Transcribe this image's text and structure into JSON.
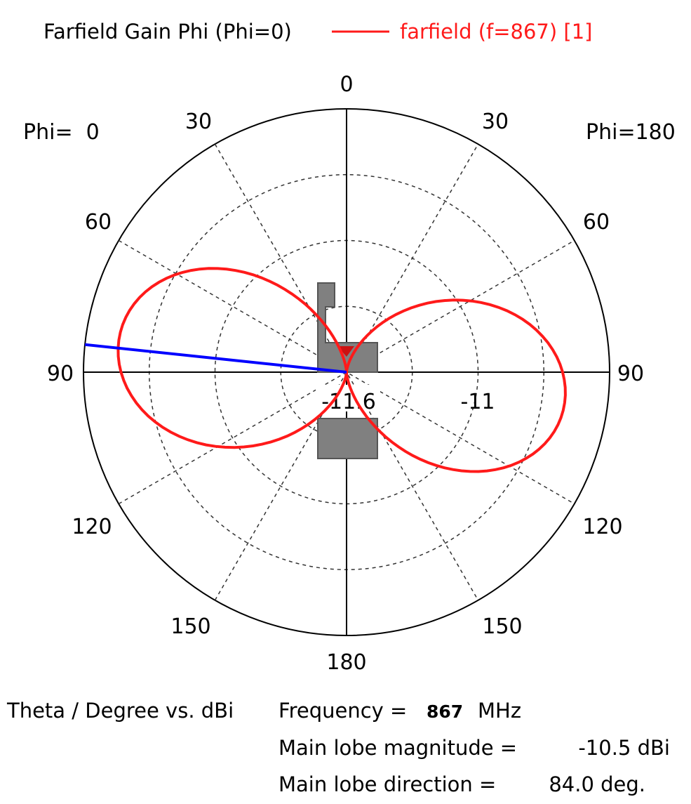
{
  "chart_data": {
    "type": "polar",
    "title": "Farfield Gain Phi (Phi=0)",
    "legend": {
      "label": "farfield (f=867) [1]",
      "position": "top"
    },
    "left_half_label": "Phi=  0",
    "right_half_label": "Phi=180",
    "angle_labels": {
      "top": "0",
      "upper_left": "30",
      "upper_right": "30",
      "left_60": "60",
      "right_60": "60",
      "left_90": "90",
      "right_90": "90",
      "left_120": "120",
      "right_120": "120",
      "left_150": "150",
      "right_150": "150",
      "bottom": "180"
    },
    "radial_labels": [
      "-11.6",
      "-11"
    ],
    "units": "dBi",
    "angle_unit": "degree",
    "series": [
      {
        "name": "farfield (f=867) [1]",
        "color": "#ff1a1a",
        "theta_deg": [
          0,
          15,
          30,
          45,
          60,
          75,
          84,
          90,
          105,
          120,
          135,
          150,
          165,
          180
        ],
        "phi0_gain_dbi": [
          -11.6,
          -11.59,
          -11.5,
          -11.2,
          -10.9,
          -10.6,
          -10.5,
          -10.5,
          -10.6,
          -10.9,
          -11.2,
          -11.5,
          -11.59,
          -11.6
        ],
        "phi180_gain_dbi": [
          -11.6,
          -11.59,
          -11.5,
          -11.2,
          -10.9,
          -10.6,
          -10.5,
          -10.5,
          -10.6,
          -10.9,
          -11.2,
          -11.5,
          -11.59,
          -11.6
        ]
      }
    ],
    "main_lobe_marker": {
      "color": "#0000ff",
      "side": "Phi=  0",
      "theta_deg": 84.0
    },
    "grid": true,
    "footer": {
      "axis_caption": "Theta / Degree vs. dBi",
      "frequency_label": "Frequency =",
      "frequency_value": "867",
      "frequency_unit": "MHz",
      "main_lobe_magnitude_label": "Main lobe magnitude =",
      "main_lobe_magnitude_value": "-10.5 dBi",
      "main_lobe_direction_label": "Main lobe direction =",
      "main_lobe_direction_value": "84.0 deg."
    }
  }
}
